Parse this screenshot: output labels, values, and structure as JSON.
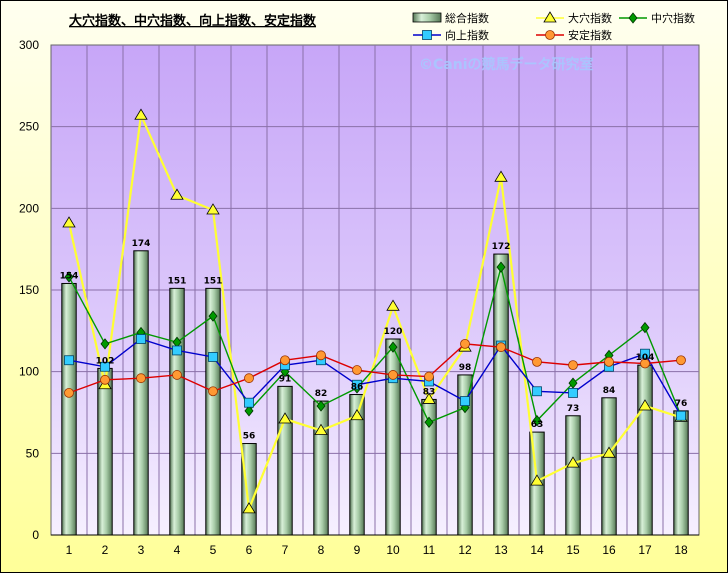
{
  "chart_data": {
    "type": "bar",
    "title": "大穴指数、中穴指数、向上指数、安定指数",
    "watermark": "©Caniの競馬データ研究室",
    "categories": [
      "1",
      "2",
      "3",
      "4",
      "5",
      "6",
      "7",
      "8",
      "9",
      "10",
      "11",
      "12",
      "13",
      "14",
      "15",
      "16",
      "17",
      "18"
    ],
    "ylim": [
      0,
      300
    ],
    "yticks": [
      0,
      50,
      100,
      150,
      200,
      250,
      300
    ],
    "grid": true,
    "legend_position": "top-right",
    "series": [
      {
        "name": "総合指数",
        "kind": "bar",
        "color": "#8fbc8f",
        "values": [
          154,
          102,
          174,
          151,
          151,
          56,
          91,
          82,
          86,
          120,
          83,
          98,
          172,
          63,
          73,
          84,
          104,
          76
        ],
        "labels": [
          "154",
          "102",
          "174",
          "151",
          "151",
          "56",
          "91",
          "82",
          "86",
          "120",
          "83",
          "98",
          "172",
          "63",
          "73",
          "84",
          "104",
          "76"
        ]
      },
      {
        "name": "大穴指数",
        "kind": "line",
        "marker": "triangle",
        "color": "#ffff33",
        "values": [
          191,
          92,
          257,
          208,
          199,
          16,
          71,
          64,
          73,
          140,
          83,
          115,
          219,
          33,
          44,
          50,
          79,
          72
        ]
      },
      {
        "name": "中穴指数",
        "kind": "line",
        "marker": "diamond",
        "color": "#009900",
        "values": [
          158,
          117,
          124,
          118,
          134,
          76,
          100,
          79,
          90,
          115,
          69,
          78,
          164,
          70,
          93,
          110,
          127,
          73
        ]
      },
      {
        "name": "向上指数",
        "kind": "line",
        "marker": "square",
        "color": "#0000cc",
        "values": [
          107,
          103,
          120,
          113,
          109,
          81,
          104,
          107,
          92,
          96,
          94,
          82,
          116,
          88,
          87,
          103,
          111,
          73
        ]
      },
      {
        "name": "安定指数",
        "kind": "line",
        "marker": "circle",
        "color": "#dd0000",
        "values": [
          87,
          95,
          96,
          98,
          88,
          96,
          107,
          110,
          101,
          98,
          97,
          117,
          115,
          106,
          104,
          106,
          105,
          107
        ]
      }
    ]
  }
}
